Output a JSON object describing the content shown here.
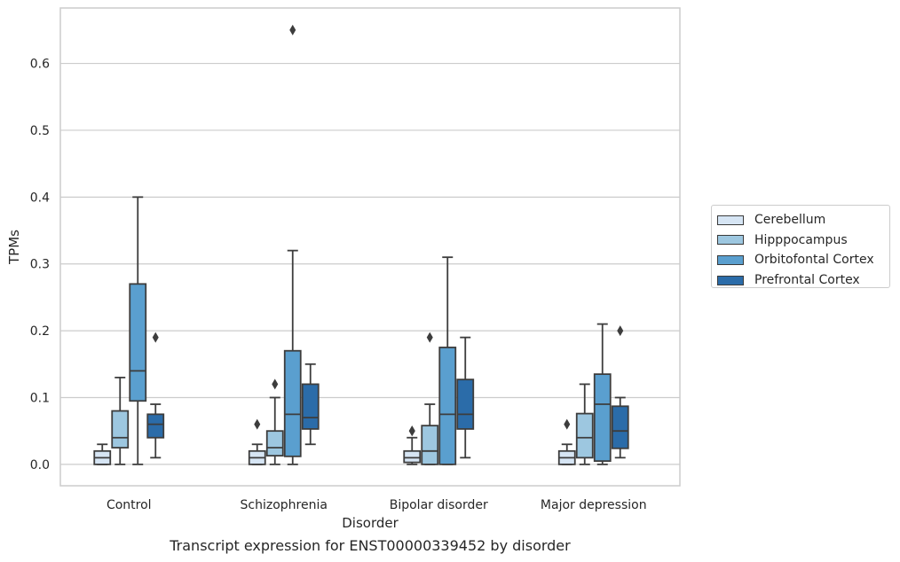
{
  "chart_data": {
    "type": "box",
    "xlabel": "Disorder",
    "ylabel": "TPMs",
    "caption": "Transcript expression for ENST00000339452 by disorder",
    "ylim": [
      -0.032,
      0.683
    ],
    "yticks": [
      0.0,
      0.1,
      0.2,
      0.3,
      0.4,
      0.5,
      0.6
    ],
    "ytick_labels": [
      "0.0",
      "0.1",
      "0.2",
      "0.3",
      "0.4",
      "0.5",
      "0.6"
    ],
    "grid": "horizontal",
    "legend_position": "right",
    "categories": [
      "Control",
      "Schizophrenia",
      "Bipolar disorder",
      "Major depression"
    ],
    "series": [
      {
        "name": "Cerebellum",
        "color": "#d6e5f4",
        "boxes": [
          {
            "whislo": 0.0,
            "q1": 0.0,
            "med": 0.01,
            "q3": 0.02,
            "whishi": 0.03,
            "fliers": []
          },
          {
            "whislo": 0.0,
            "q1": 0.0,
            "med": 0.01,
            "q3": 0.02,
            "whishi": 0.03,
            "fliers": [
              0.06
            ]
          },
          {
            "whislo": 0.0,
            "q1": 0.003,
            "med": 0.01,
            "q3": 0.02,
            "whishi": 0.04,
            "fliers": [
              0.05,
              0.05
            ]
          },
          {
            "whislo": 0.0,
            "q1": 0.0,
            "med": 0.01,
            "q3": 0.02,
            "whishi": 0.03,
            "fliers": [
              0.06
            ]
          }
        ]
      },
      {
        "name": "Hipppocampus",
        "color": "#9dc7e0",
        "boxes": [
          {
            "whislo": 0.0,
            "q1": 0.025,
            "med": 0.04,
            "q3": 0.08,
            "whishi": 0.13,
            "fliers": []
          },
          {
            "whislo": 0.0,
            "q1": 0.013,
            "med": 0.025,
            "q3": 0.05,
            "whishi": 0.1,
            "fliers": [
              0.12
            ]
          },
          {
            "whislo": 0.0,
            "q1": 0.0,
            "med": 0.02,
            "q3": 0.058,
            "whishi": 0.09,
            "fliers": [
              0.19
            ]
          },
          {
            "whislo": 0.0,
            "q1": 0.01,
            "med": 0.04,
            "q3": 0.076,
            "whishi": 0.12,
            "fliers": []
          }
        ]
      },
      {
        "name": "Orbitofontal Cortex",
        "color": "#5a9fcf",
        "boxes": [
          {
            "whislo": 0.0,
            "q1": 0.095,
            "med": 0.14,
            "q3": 0.27,
            "whishi": 0.4,
            "fliers": []
          },
          {
            "whislo": 0.0,
            "q1": 0.012,
            "med": 0.075,
            "q3": 0.17,
            "whishi": 0.32,
            "fliers": [
              0.65
            ]
          },
          {
            "whislo": 0.0,
            "q1": 0.0,
            "med": 0.075,
            "q3": 0.175,
            "whishi": 0.31,
            "fliers": []
          },
          {
            "whislo": 0.0,
            "q1": 0.005,
            "med": 0.09,
            "q3": 0.135,
            "whishi": 0.21,
            "fliers": []
          }
        ]
      },
      {
        "name": "Prefrontal Cortex",
        "color": "#2b6ca9",
        "boxes": [
          {
            "whislo": 0.01,
            "q1": 0.04,
            "med": 0.06,
            "q3": 0.075,
            "whishi": 0.09,
            "fliers": [
              0.19
            ]
          },
          {
            "whislo": 0.03,
            "q1": 0.053,
            "med": 0.07,
            "q3": 0.12,
            "whishi": 0.15,
            "fliers": []
          },
          {
            "whislo": 0.01,
            "q1": 0.053,
            "med": 0.075,
            "q3": 0.127,
            "whishi": 0.19,
            "fliers": []
          },
          {
            "whislo": 0.01,
            "q1": 0.024,
            "med": 0.05,
            "q3": 0.087,
            "whishi": 0.1,
            "fliers": [
              0.2
            ]
          }
        ]
      }
    ]
  }
}
